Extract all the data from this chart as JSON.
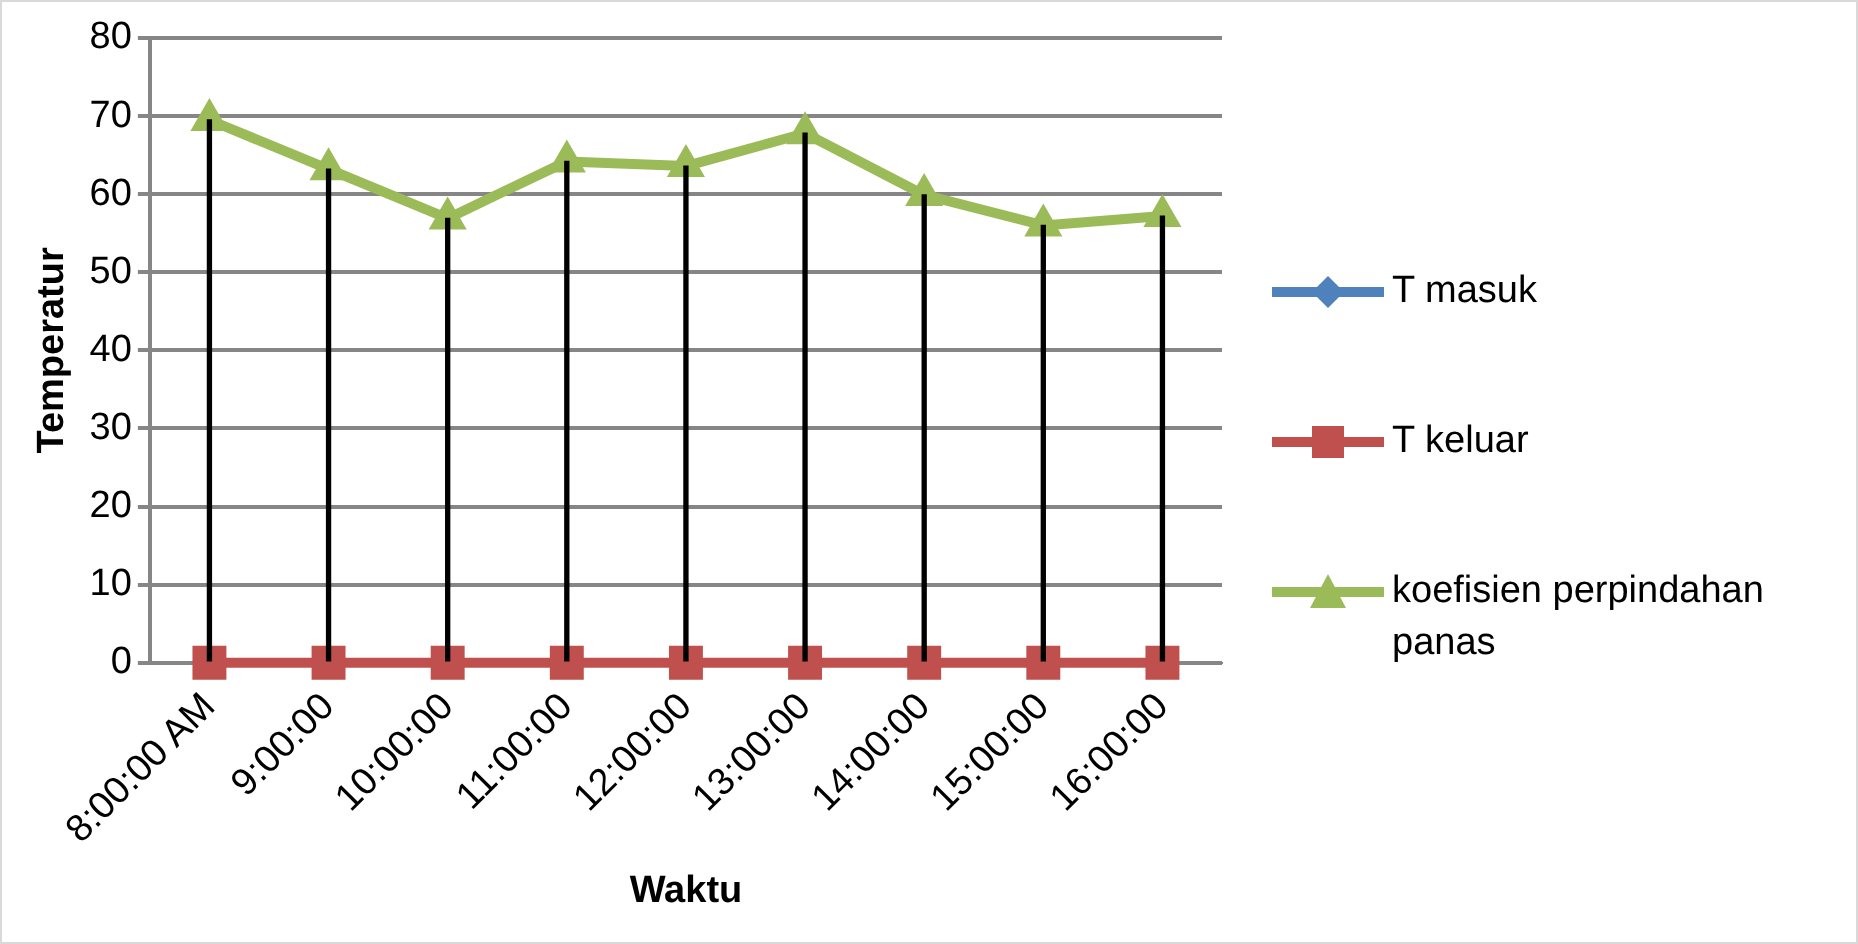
{
  "chart_data": {
    "type": "line",
    "xlabel": "Waktu",
    "ylabel": "Temperatur",
    "categories": [
      "8:00:00 AM",
      "9:00:00",
      "10:00:00",
      "11:00:00",
      "12:00:00",
      "13:00:00",
      "14:00:00",
      "15:00:00",
      "16:00:00"
    ],
    "series": [
      {
        "name": "T masuk",
        "color": "#4f81bd",
        "marker": "diamond",
        "values": [
          null,
          null,
          null,
          null,
          null,
          null,
          null,
          null,
          null
        ]
      },
      {
        "name": "T keluar",
        "color": "#c0504d",
        "marker": "square",
        "values": [
          0,
          0,
          0,
          0,
          0,
          0,
          0,
          0,
          0
        ]
      },
      {
        "name": "koefisien perpindahan panas",
        "color": "#9bbb59",
        "marker": "triangle",
        "values": [
          69.5,
          63.2,
          56.9,
          64.2,
          63.6,
          67.8,
          59.9,
          56,
          57.2
        ]
      },
      {
        "type": "bar",
        "color": "#000000",
        "values": [
          69.5,
          63.2,
          56.9,
          64.2,
          63.6,
          67.8,
          59.9,
          56,
          57.2
        ]
      }
    ],
    "ylim": [
      0,
      80
    ],
    "yticks": [
      0,
      10,
      20,
      30,
      40,
      50,
      60,
      70,
      80
    ],
    "grid": "y",
    "legend": "right"
  }
}
